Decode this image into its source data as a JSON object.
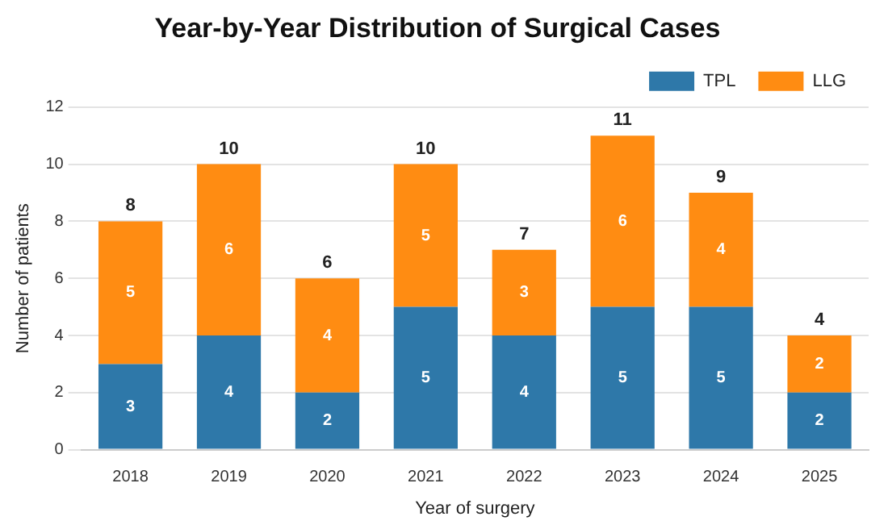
{
  "chart_data": {
    "type": "bar",
    "title": "Year-by-Year Distribution of Surgical Cases",
    "xlabel": "Year of surgery",
    "ylabel": "Number of patients",
    "categories": [
      "2018",
      "2019",
      "2020",
      "2021",
      "2022",
      "2023",
      "2024",
      "2025"
    ],
    "series": [
      {
        "name": "TPL",
        "color": "#2e78a9",
        "values": [
          3,
          4,
          2,
          5,
          4,
          5,
          5,
          2
        ]
      },
      {
        "name": "LLG",
        "color": "#ff8c12",
        "values": [
          5,
          6,
          4,
          5,
          3,
          6,
          4,
          2
        ]
      }
    ],
    "stacked": true,
    "data_labels": true,
    "totals": [
      "8",
      "10",
      "6",
      "10",
      "7",
      "11",
      "9",
      "4"
    ],
    "ylim": [
      0,
      12
    ],
    "yticks": [
      0,
      2,
      4,
      6,
      8,
      10,
      12
    ],
    "grid": "y",
    "legend": "top right"
  }
}
